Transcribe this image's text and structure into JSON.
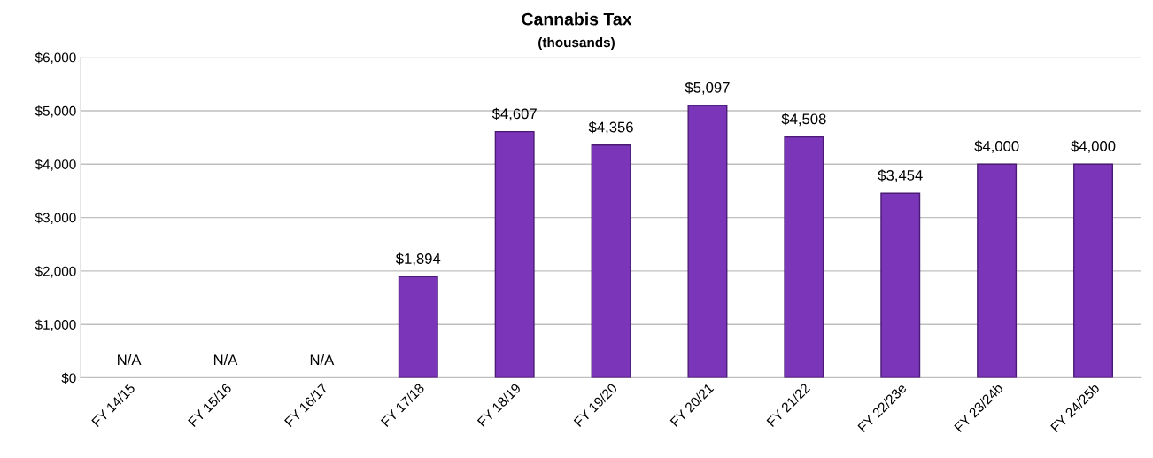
{
  "chart_data": {
    "type": "bar",
    "title": "Cannabis Tax",
    "subtitle": "(thousands)",
    "categories": [
      "FY 14/15",
      "FY 15/16",
      "FY 16/17",
      "FY 17/18",
      "FY 18/19",
      "FY 19/20",
      "FY 20/21",
      "FY 21/22",
      "FY 22/23e",
      "FY 23/24b",
      "FY 24/25b"
    ],
    "values": [
      null,
      null,
      null,
      1894,
      4607,
      4356,
      5097,
      4508,
      3454,
      4000,
      4000
    ],
    "value_labels": [
      "N/A",
      "N/A",
      "N/A",
      "$1,894",
      "$4,607",
      "$4,356",
      "$5,097",
      "$4,508",
      "$3,454",
      "$4,000",
      "$4,000"
    ],
    "color": "#7b35b8",
    "ylim": [
      0,
      6000
    ],
    "yticks": [
      {
        "value": 0,
        "label": "$0"
      },
      {
        "value": 1000,
        "label": "$1,000"
      },
      {
        "value": 2000,
        "label": "$2,000"
      },
      {
        "value": 3000,
        "label": "$3,000"
      },
      {
        "value": 4000,
        "label": "$4,000"
      },
      {
        "value": 5000,
        "label": "$5,000"
      },
      {
        "value": 6000,
        "label": "$6,000"
      }
    ],
    "grid": "y"
  }
}
